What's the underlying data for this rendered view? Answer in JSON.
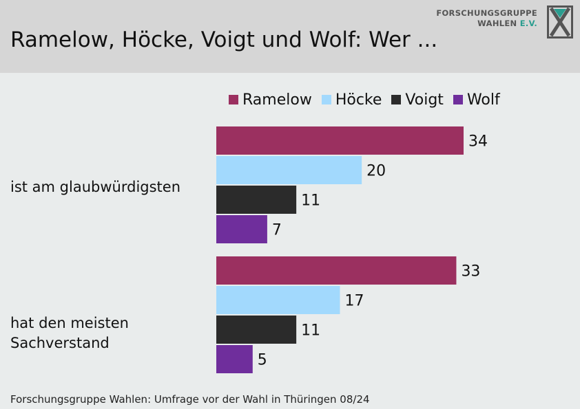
{
  "title": "Ramelow, Höcke, Voigt und Wolf: Wer ...",
  "logo": {
    "line1": "FORSCHUNGSGRUPPE",
    "line2": "WAHLEN",
    "line2_suffix": "E.V.",
    "icon": "fgw-logo-icon"
  },
  "source": "Forschungsgruppe Wahlen: Umfrage vor der Wahl in Thüringen 08/24",
  "chart_data": {
    "type": "bar",
    "orientation": "horizontal",
    "categories": [
      "ist am glaubwürdigsten",
      "hat den meisten Sachverstand"
    ],
    "category_lines": [
      [
        "ist am glaubwürdigsten"
      ],
      [
        "hat den meisten",
        "Sachverstand"
      ]
    ],
    "series": [
      {
        "name": "Ramelow",
        "color": "#9b3060",
        "values": [
          34,
          33
        ]
      },
      {
        "name": "Höcke",
        "color": "#a2d9fd",
        "values": [
          20,
          17
        ]
      },
      {
        "name": "Voigt",
        "color": "#2b2b2b",
        "values": [
          11,
          11
        ]
      },
      {
        "name": "Wolf",
        "color": "#6f2e9c",
        "values": [
          7,
          5
        ]
      }
    ],
    "xlim": [
      0,
      34
    ],
    "legend_position": "top",
    "grid": false,
    "data_labels": true
  }
}
